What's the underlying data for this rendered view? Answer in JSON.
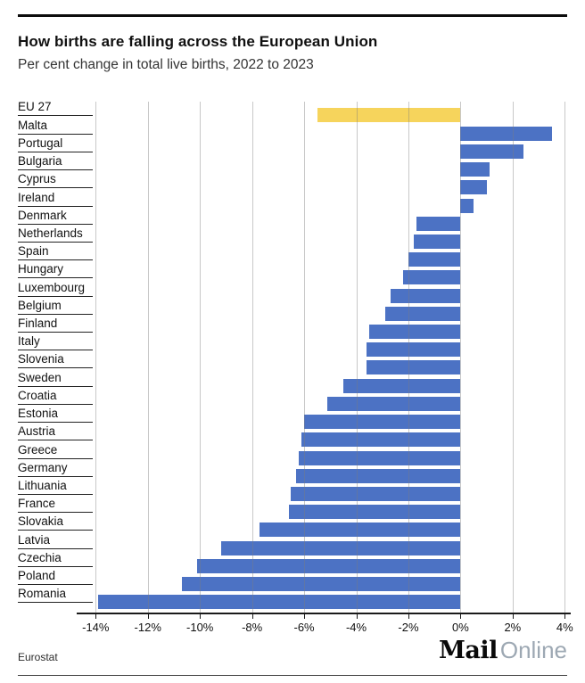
{
  "header": {
    "title": "How births are falling across the European Union",
    "subtitle": "Per cent change in total live births, 2022 to 2023"
  },
  "footer": {
    "source": "Eurostat",
    "logo_bold": "Mail",
    "logo_light": "Online"
  },
  "chart_data": {
    "type": "bar",
    "orientation": "horizontal",
    "title": "How births are falling across the European Union",
    "subtitle": "Per cent change in total live births, 2022 to 2023",
    "categories": [
      "EU 27",
      "Malta",
      "Portugal",
      "Bulgaria",
      "Cyprus",
      "Ireland",
      "Denmark",
      "Netherlands",
      "Spain",
      "Hungary",
      "Luxembourg",
      "Belgium",
      "Finland",
      "Italy",
      "Slovenia",
      "Sweden",
      "Croatia",
      "Estonia",
      "Austria",
      "Greece",
      "Germany",
      "Lithuania",
      "France",
      "Slovakia",
      "Latvia",
      "Czechia",
      "Poland",
      "Romania"
    ],
    "values": [
      -5.5,
      3.5,
      2.4,
      1.1,
      1.0,
      0.5,
      -1.7,
      -1.8,
      -2.0,
      -2.2,
      -2.7,
      -2.9,
      -3.5,
      -3.6,
      -3.6,
      -4.5,
      -5.1,
      -6.0,
      -6.1,
      -6.2,
      -6.3,
      -6.5,
      -6.6,
      -7.7,
      -9.2,
      -10.1,
      -10.7,
      -13.9
    ],
    "value_unit": "%",
    "highlight_category": "EU 27",
    "colors": {
      "bar": "#4C72C4",
      "highlight": "#F6D45C"
    },
    "xlim": [
      -14,
      4
    ],
    "x_tick_values": [
      -14,
      -12,
      -10,
      -8,
      -6,
      -4,
      -2,
      0,
      2,
      4
    ],
    "x_tick_labels": [
      "-14%",
      "-12%",
      "-10%",
      "-8%",
      "-6%",
      "-4%",
      "-2%",
      "0%",
      "2%",
      "4%"
    ],
    "grid": true,
    "legend": "none"
  }
}
